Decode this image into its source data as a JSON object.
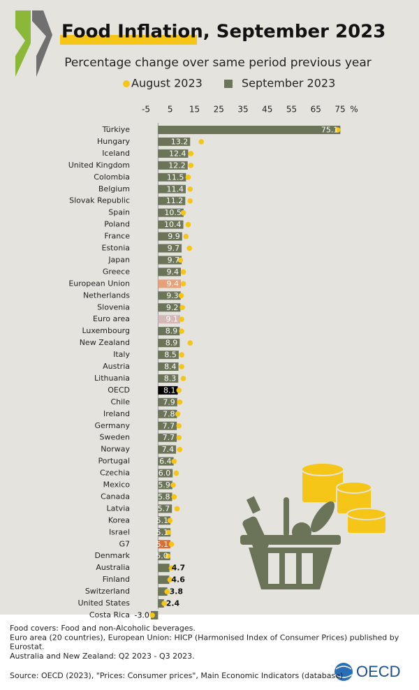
{
  "chart_data": {
    "type": "bar_dot",
    "title": "Food Inflation, September 2023",
    "subtitle": "Percentage change over same period previous year",
    "unit": "%",
    "categories": [
      "Türkiye",
      "Hungary",
      "Iceland",
      "United Kingdom",
      "Colombia",
      "Belgium",
      "Slovak Republic",
      "Spain",
      "Poland",
      "France",
      "Estonia",
      "Japan",
      "Greece",
      "European Union",
      "Netherlands",
      "Slovenia",
      "Euro area",
      "Luxembourg",
      "New Zealand",
      "Italy",
      "Austria",
      "Lithuania",
      "OECD",
      "Chile",
      "Ireland",
      "Germany",
      "Sweden",
      "Norway",
      "Portugal",
      "Czechia",
      "Mexico",
      "Canada",
      "Latvia",
      "Korea",
      "Israel",
      "G7",
      "Denmark",
      "Australia",
      "Finland",
      "Switzerland",
      "United States",
      "Costa Rica"
    ],
    "series": [
      {
        "name": "August 2023",
        "color": "#f5c518",
        "kind": "dot",
        "values": [
          74,
          17.8,
          13.5,
          13.5,
          12.4,
          13.2,
          13.2,
          10.4,
          12.4,
          11.5,
          12.9,
          9.2,
          10.4,
          10.4,
          9.5,
          10,
          9.7,
          9.7,
          13.2,
          9.7,
          9.7,
          10.4,
          8.6,
          8.9,
          8.1,
          8.6,
          8.6,
          8.9,
          6.6,
          7.5,
          6.2,
          6.6,
          7.8,
          4.9,
          4.3,
          5.5,
          4,
          5.5,
          4.9,
          3.7,
          2.5,
          -2.4
        ]
      },
      {
        "name": "September 2023",
        "color": "#6b7458",
        "kind": "bar",
        "colors": [
          "#6b7458",
          "#6b7458",
          "#6b7458",
          "#6b7458",
          "#6b7458",
          "#6b7458",
          "#6b7458",
          "#6b7458",
          "#6b7458",
          "#6b7458",
          "#6b7458",
          "#6b7458",
          "#6b7458",
          "#e8a07a",
          "#6b7458",
          "#6b7458",
          "#d4b8b8",
          "#6b7458",
          "#6b7458",
          "#6b7458",
          "#6b7458",
          "#6b7458",
          "#000000",
          "#6b7458",
          "#6b7458",
          "#6b7458",
          "#6b7458",
          "#6b7458",
          "#6b7458",
          "#6b7458",
          "#6b7458",
          "#6b7458",
          "#6b7458",
          "#6b7458",
          "#6b7458",
          "#d9703a",
          "#6b7458",
          "#6b7458",
          "#6b7458",
          "#6b7458",
          "#6b7458",
          "#6b7458"
        ],
        "values": [
          75.1,
          13.2,
          12.4,
          12.2,
          11.5,
          11.4,
          11.2,
          10.5,
          10.4,
          9.9,
          9.7,
          9.7,
          9.4,
          9.4,
          9.3,
          9.2,
          9.1,
          8.9,
          8.9,
          8.5,
          8.4,
          8.3,
          8.1,
          7.9,
          7.8,
          7.7,
          7.7,
          7.4,
          6.4,
          6,
          5.9,
          5.8,
          5.7,
          5.1,
          5.1,
          5.1,
          5,
          4.7,
          4.6,
          3.8,
          2.4,
          -3
        ],
        "value_labels": [
          "75.1",
          "13.2",
          "12.4",
          "12.2",
          "11.5",
          "11.4",
          "11.2",
          "10.5",
          "10.4",
          "9.9",
          "9.7",
          "9.7",
          "9.4",
          "9.4",
          "9.3",
          "9.2",
          "9.1",
          "8.9",
          "8.9",
          "8.5",
          "8.4",
          "8.3",
          "8.1",
          "7.9",
          "7.8",
          "7.7",
          "7.7",
          "7.4",
          "6.4",
          "6.0",
          "5.9",
          "5.8",
          "5.7",
          "5.1",
          "5.1",
          "5.1",
          "5.0",
          "4.7",
          "4.6",
          "3.8",
          "2.4",
          "-3.0"
        ]
      }
    ],
    "xlim": [
      -5,
      75
    ],
    "xticks": [
      -5,
      5,
      15,
      25,
      35,
      45,
      55,
      65,
      75
    ],
    "notes": [
      "Food covers: Food and non-Alcoholic beverages.",
      "Euro area (20 countries), European Union: HICP (Harmonised Index of Consumer Prices) published by",
      "Eurostat.",
      "Australia and New Zealand: Q2 2023 - Q3 2023."
    ],
    "source": "Source: OECD (2023), \"Prices: Consumer prices\", Main Economic Indicators (database)",
    "logo": "OECD"
  }
}
